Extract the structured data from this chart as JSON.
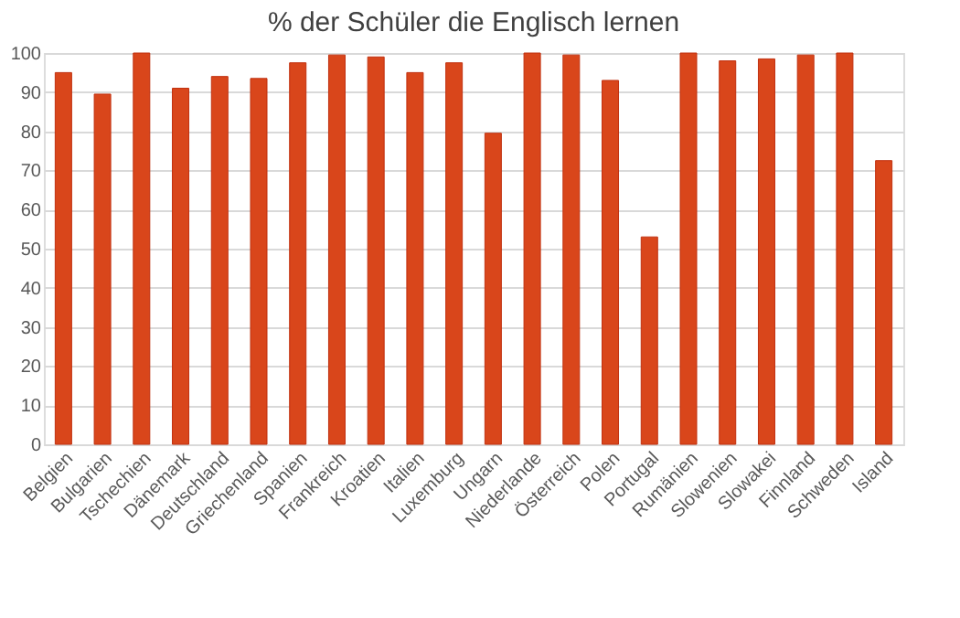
{
  "chart_data": {
    "type": "bar",
    "title": "% der Schüler die Englisch lernen",
    "categories": [
      "Belgien",
      "Bulgarien",
      "Tschechien",
      "Dänemark",
      "Deutschland",
      "Griechenland",
      "Spanien",
      "Frankreich",
      "Kroatien",
      "Italien",
      "Luxemburg",
      "Ungarn",
      "Niederlande",
      "Österreich",
      "Polen",
      "Portugal",
      "Rumänien",
      "Slowenien",
      "Slowakei",
      "Finnland",
      "Schweden",
      "Island"
    ],
    "values": [
      95,
      89.5,
      100,
      91,
      94,
      93.5,
      97.5,
      99.5,
      99,
      95,
      97.5,
      79.5,
      100,
      99.5,
      93,
      53,
      100,
      98,
      98.5,
      99.5,
      100,
      72.5
    ],
    "color": "#d9461b",
    "ylim": [
      0,
      100
    ],
    "yticks": [
      0,
      10,
      20,
      30,
      40,
      50,
      60,
      70,
      80,
      90,
      100
    ],
    "grid": "y"
  }
}
